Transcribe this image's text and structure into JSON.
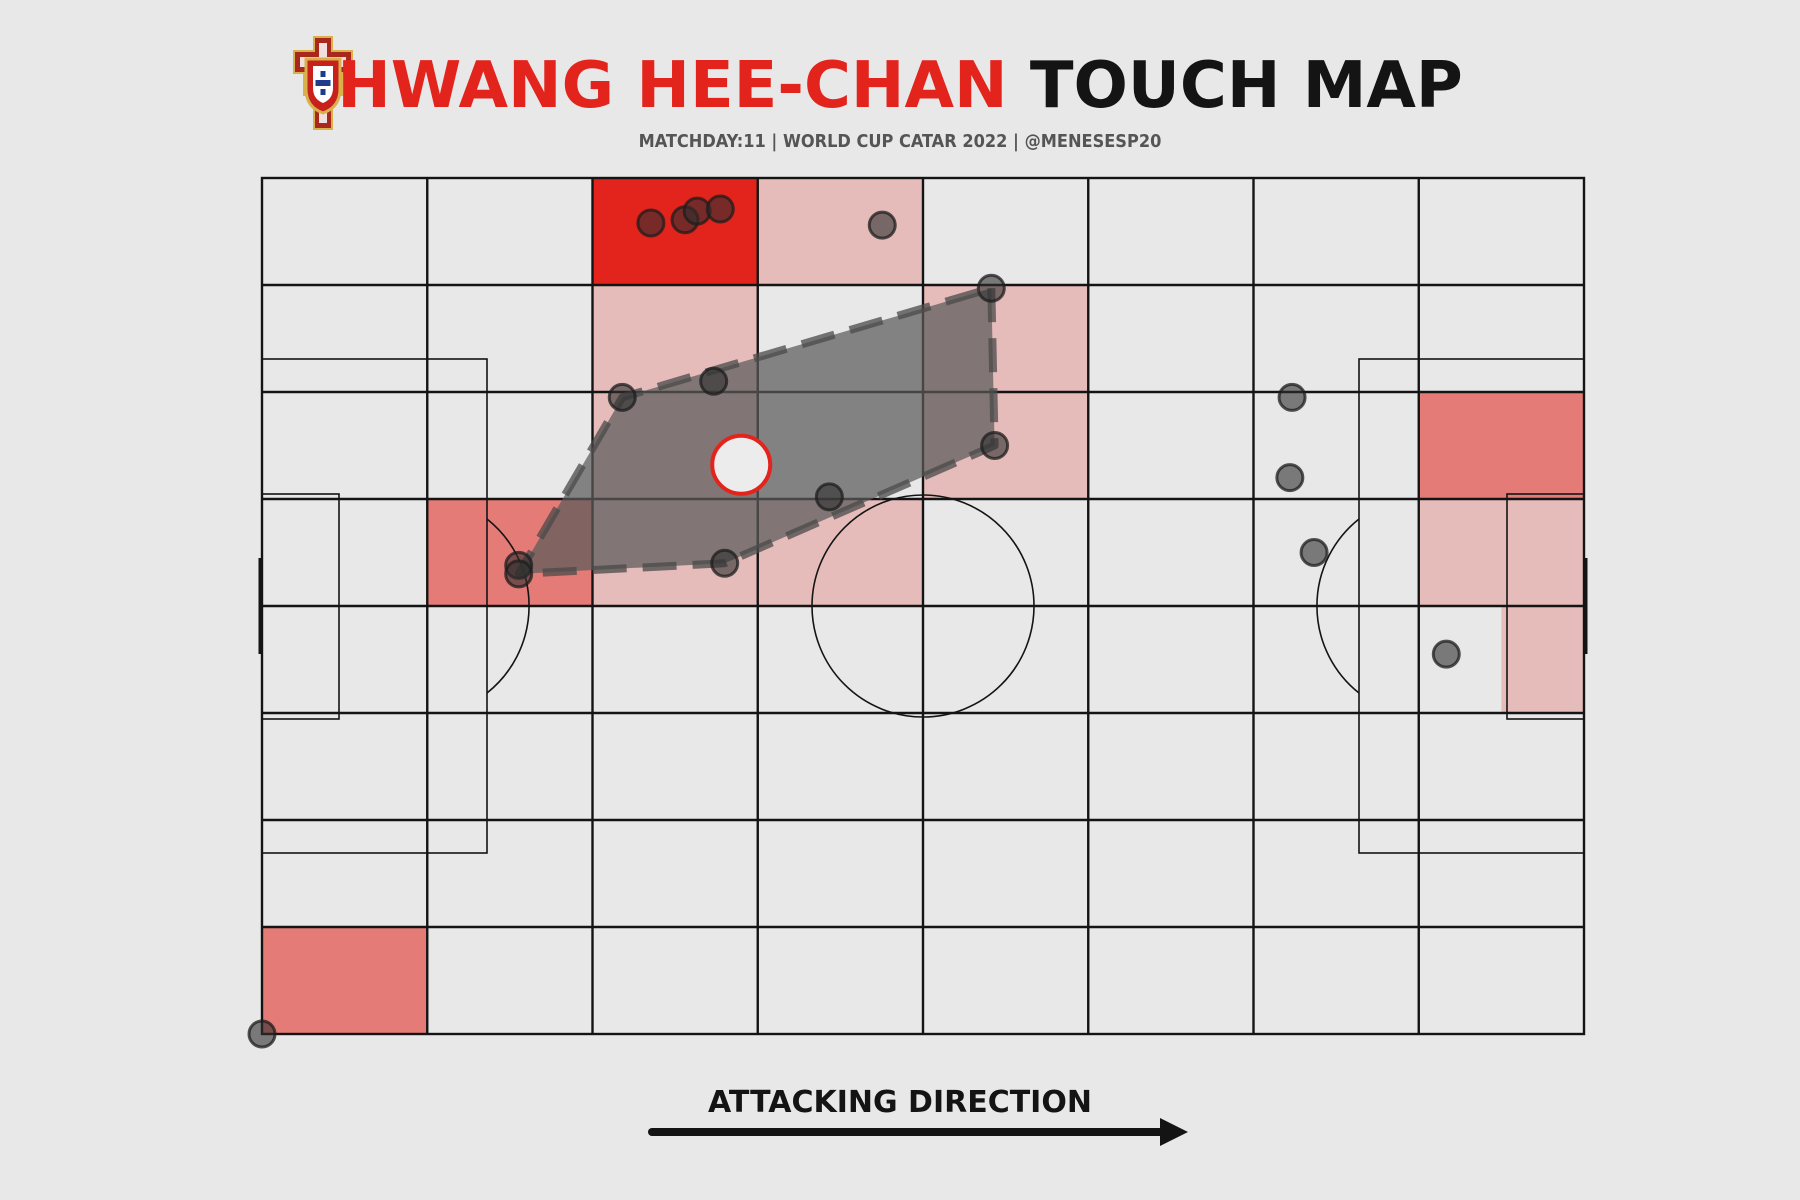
{
  "header": {
    "player_name": "HWANG HEE-CHAN",
    "title_rest": "TOUCH MAP",
    "subtitle": "MATCHDAY:11 | WORLD CUP CATAR 2022 | @MENESESP20"
  },
  "footer": {
    "direction_label": "ATTACKING DIRECTION"
  },
  "colors": {
    "background": "#e8e8e8",
    "accent_red": "#e3241d",
    "text_dark": "#141414",
    "line": "#141414",
    "touch_point": "#3a3a3a",
    "hull_fill": "#5a5a5a",
    "average_marker": "#e3241d"
  },
  "icons": {
    "crest": "portugal-federation-crest-icon",
    "arrow": "arrow-right-icon"
  },
  "chart_data": {
    "type": "scatter",
    "title": "HWANG HEE-CHAN TOUCH MAP",
    "pitch": {
      "x_range": [
        0,
        120
      ],
      "y_range": [
        0,
        80
      ],
      "attacking_direction": "left-to-right"
    },
    "grid": {
      "columns": 8,
      "rows": 8
    },
    "heat_bins": [
      {
        "col": 2,
        "row": 0,
        "count": 4
      },
      {
        "col": 3,
        "row": 0,
        "count": 1
      },
      {
        "col": 2,
        "row": 1,
        "count": 1
      },
      {
        "col": 4,
        "row": 1,
        "count": 1
      },
      {
        "col": 2,
        "row": 2,
        "count": 1
      },
      {
        "col": 4,
        "row": 2,
        "count": 1
      },
      {
        "col": 7,
        "row": 2,
        "count": 2
      },
      {
        "col": 1,
        "row": 3,
        "count": 2
      },
      {
        "col": 2,
        "row": 3,
        "count": 1
      },
      {
        "col": 3,
        "row": 3,
        "count": 1
      },
      {
        "col": 7,
        "row": 3,
        "count": 1
      },
      {
        "col": 8,
        "row": 4,
        "count": 1
      },
      {
        "col": 0,
        "row": 7,
        "count": 2
      }
    ],
    "touches": [
      {
        "x": 35.3,
        "y": 4.2
      },
      {
        "x": 38.4,
        "y": 3.9
      },
      {
        "x": 39.5,
        "y": 3.1
      },
      {
        "x": 41.6,
        "y": 2.9
      },
      {
        "x": 56.3,
        "y": 4.4
      },
      {
        "x": 66.2,
        "y": 10.3
      },
      {
        "x": 41.0,
        "y": 19.0
      },
      {
        "x": 32.7,
        "y": 20.5
      },
      {
        "x": 66.5,
        "y": 25.0
      },
      {
        "x": 51.5,
        "y": 29.8
      },
      {
        "x": 23.3,
        "y": 36.2
      },
      {
        "x": 23.3,
        "y": 37.0
      },
      {
        "x": 42.0,
        "y": 36.0
      },
      {
        "x": 93.5,
        "y": 20.5
      },
      {
        "x": 93.3,
        "y": 28.0
      },
      {
        "x": 95.5,
        "y": 35.0
      },
      {
        "x": 107.5,
        "y": 44.5
      },
      {
        "x": 0.0,
        "y": 80.0
      }
    ],
    "hull": [
      {
        "x": 66.2,
        "y": 10.3
      },
      {
        "x": 66.5,
        "y": 25.0
      },
      {
        "x": 42.0,
        "y": 36.0
      },
      {
        "x": 23.3,
        "y": 37.0
      },
      {
        "x": 32.7,
        "y": 20.5
      }
    ],
    "average_position": {
      "x": 43.5,
      "y": 26.8
    }
  }
}
